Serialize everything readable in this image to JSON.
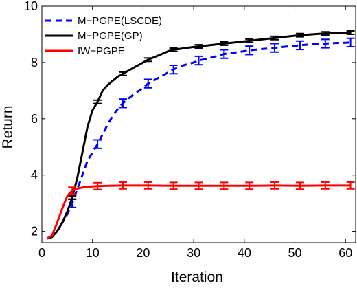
{
  "chart_data": {
    "type": "line",
    "title": "",
    "xlabel": "Iteration",
    "ylabel": "Return",
    "xlim": [
      0,
      62
    ],
    "ylim": [
      1.6,
      10
    ],
    "xticks": [
      0,
      10,
      20,
      30,
      40,
      50,
      60
    ],
    "yticks": [
      2,
      4,
      6,
      8,
      10
    ],
    "grid": false,
    "legend_position": "top-left",
    "series": [
      {
        "name": "M−PGPE(LSCDE)",
        "color": "#0000ff",
        "style": "dashed",
        "x": [
          1,
          2,
          3,
          4,
          5,
          6,
          7,
          8,
          9,
          10,
          11,
          12,
          13,
          14,
          15,
          16,
          18,
          20,
          21,
          23,
          25,
          26,
          28,
          30,
          31,
          33,
          35,
          36,
          38,
          40,
          41,
          43,
          45,
          46,
          48,
          50,
          51,
          53,
          55,
          56,
          58,
          60,
          61
        ],
        "y": [
          1.75,
          1.8,
          2.0,
          2.3,
          2.6,
          3.0,
          3.5,
          4.0,
          4.5,
          4.8,
          5.1,
          5.45,
          5.8,
          6.1,
          6.35,
          6.55,
          6.85,
          7.1,
          7.25,
          7.45,
          7.65,
          7.75,
          7.9,
          8.0,
          8.07,
          8.15,
          8.25,
          8.3,
          8.35,
          8.4,
          8.43,
          8.47,
          8.5,
          8.52,
          8.56,
          8.59,
          8.61,
          8.64,
          8.66,
          8.67,
          8.69,
          8.7,
          8.71
        ],
        "error_x": [
          6,
          11,
          16,
          21,
          26,
          31,
          36,
          41,
          46,
          51,
          56,
          61
        ],
        "error_y": [
          3.0,
          5.1,
          6.55,
          7.25,
          7.75,
          8.07,
          8.3,
          8.43,
          8.52,
          8.61,
          8.67,
          8.71
        ],
        "error_bar": 0.15
      },
      {
        "name": "M−PGPE(GP)",
        "color": "#000000",
        "style": "solid",
        "x": [
          1,
          2,
          3,
          4,
          5,
          6,
          7,
          8,
          9,
          10,
          11,
          12,
          13,
          14,
          15,
          16,
          18,
          20,
          21,
          23,
          25,
          26,
          28,
          30,
          31,
          35,
          36,
          40,
          41,
          45,
          46,
          50,
          51,
          55,
          56,
          60,
          61
        ],
        "y": [
          1.75,
          1.8,
          2.0,
          2.3,
          2.7,
          3.2,
          3.9,
          4.8,
          5.7,
          6.3,
          6.6,
          7.0,
          7.2,
          7.35,
          7.5,
          7.6,
          7.8,
          8.0,
          8.1,
          8.25,
          8.4,
          8.45,
          8.5,
          8.55,
          8.57,
          8.65,
          8.67,
          8.75,
          8.77,
          8.85,
          8.87,
          8.95,
          8.97,
          9.02,
          9.03,
          9.05,
          9.06
        ],
        "error_x": [
          6,
          11,
          16,
          21,
          26,
          31,
          36,
          41,
          46,
          51,
          56,
          61
        ],
        "error_y": [
          3.2,
          6.6,
          7.6,
          8.1,
          8.45,
          8.57,
          8.67,
          8.77,
          8.87,
          8.97,
          9.03,
          9.06
        ],
        "error_bar": 0.06
      },
      {
        "name": "IW−PGPE",
        "color": "#ff0000",
        "style": "solid",
        "x": [
          1,
          2,
          3,
          4,
          5,
          6,
          7,
          8,
          9,
          10,
          11,
          13,
          16,
          21,
          26,
          31,
          36,
          41,
          46,
          51,
          56,
          61
        ],
        "y": [
          1.75,
          1.85,
          2.3,
          2.8,
          3.25,
          3.45,
          3.52,
          3.56,
          3.58,
          3.6,
          3.61,
          3.62,
          3.63,
          3.63,
          3.62,
          3.62,
          3.62,
          3.62,
          3.63,
          3.62,
          3.63,
          3.63
        ],
        "error_x": [
          6,
          11,
          16,
          21,
          26,
          31,
          36,
          41,
          46,
          51,
          56,
          61
        ],
        "error_y": [
          3.45,
          3.61,
          3.63,
          3.63,
          3.62,
          3.62,
          3.62,
          3.62,
          3.63,
          3.62,
          3.63,
          3.63
        ],
        "error_bar": 0.12
      }
    ]
  }
}
